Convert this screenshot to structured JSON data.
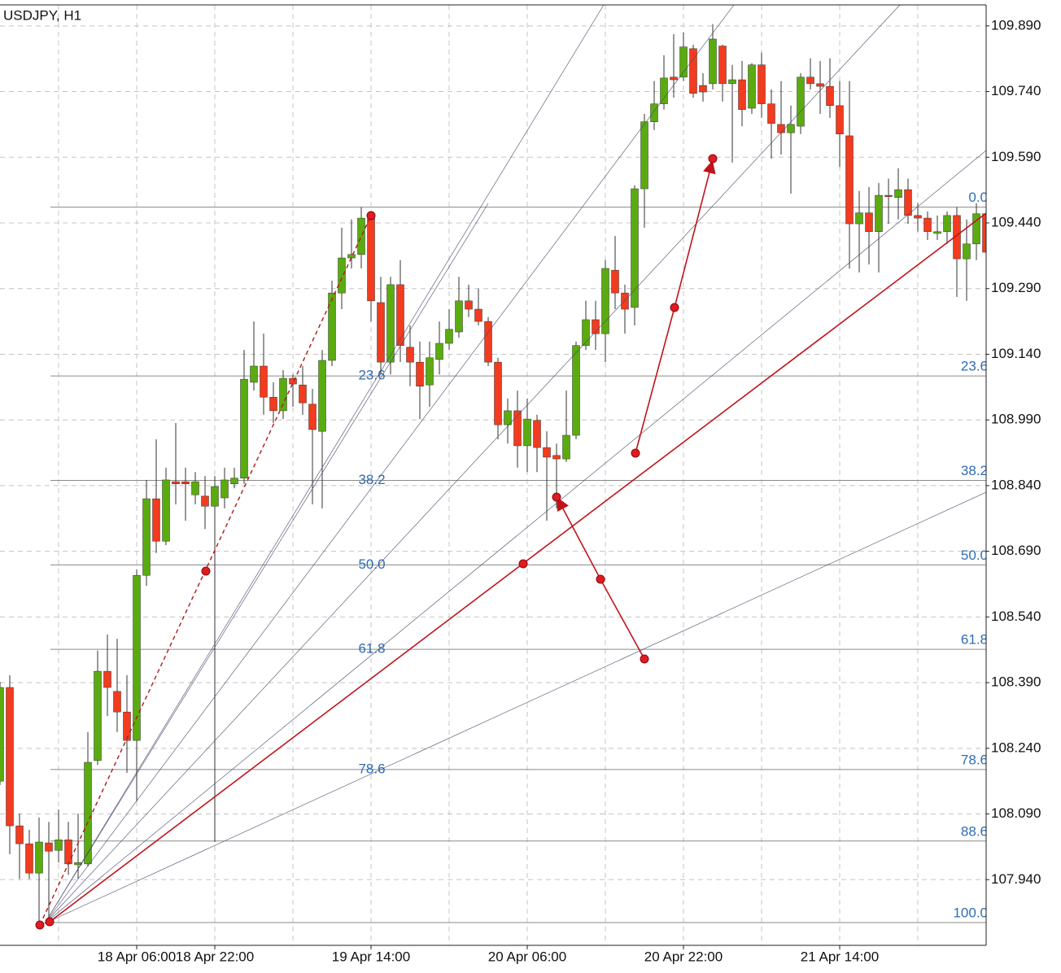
{
  "chart_data": {
    "type": "candlestick",
    "title": "USDJPY, H1",
    "categories": [
      null,
      null,
      null,
      null,
      null,
      null,
      null,
      null,
      null,
      null,
      null,
      null,
      null,
      null,
      "18 Apr 06:00",
      null,
      null,
      null,
      null,
      null,
      null,
      null,
      "18 Apr 22:00",
      null,
      null,
      null,
      null,
      null,
      null,
      null,
      null,
      null,
      null,
      null,
      null,
      null,
      null,
      null,
      "19 Apr 14:00",
      null,
      null,
      null,
      null,
      null,
      null,
      null,
      null,
      null,
      null,
      null,
      null,
      null,
      null,
      null,
      "20 Apr 06:00",
      null,
      null,
      null,
      null,
      null,
      null,
      null,
      null,
      null,
      null,
      null,
      null,
      null,
      null,
      null,
      "20 Apr 22:00",
      null,
      null,
      null,
      null,
      null,
      null,
      null,
      null,
      null,
      null,
      null,
      null,
      null,
      null,
      null,
      "21 Apr 14:00",
      null,
      null,
      null,
      null,
      null,
      null,
      null,
      null,
      null,
      null,
      null,
      null,
      null,
      null,
      null
    ],
    "open": [
      108.165,
      108.379,
      108.063,
      108.022,
      107.955,
      108.024,
      108.007,
      108.031,
      107.974,
      107.976,
      108.212,
      108.416,
      108.37,
      108.323,
      108.258,
      108.635,
      108.81,
      108.713,
      108.849,
      108.849,
      108.819,
      108.816,
      108.793,
      108.812,
      108.844,
      108.857,
      109.076,
      109.113,
      109.042,
      109.011,
      109.085,
      109.07,
      109.026,
      108.964,
      109.126,
      109.28,
      109.36,
      109.368,
      109.455,
      109.258,
      109.122,
      109.299,
      109.156,
      109.122,
      109.07,
      109.128,
      109.165,
      109.191,
      109.262,
      109.243,
      109.215,
      109.122,
      108.979,
      109.011,
      108.931,
      108.989,
      108.927,
      108.909,
      108.901,
      108.955,
      109.16,
      109.219,
      109.187,
      109.332,
      109.28,
      109.247,
      109.518,
      109.671,
      109.712,
      109.773,
      109.773,
      109.838,
      109.754,
      109.758,
      109.844,
      109.758,
      109.767,
      109.702,
      109.801,
      109.712,
      109.665,
      109.646,
      109.661,
      109.773,
      109.758,
      109.752,
      109.708,
      109.639,
      109.438,
      109.463,
      109.42,
      109.503,
      109.498,
      109.516,
      109.457,
      109.451,
      109.416,
      109.42,
      109.457,
      109.358,
      109.392,
      109.461
    ],
    "high": [
      108.392,
      108.407,
      108.091,
      108.054,
      108.082,
      108.072,
      108.1,
      108.072,
      108.091,
      108.277,
      108.463,
      108.5,
      108.49,
      108.407,
      108.648,
      108.853,
      108.946,
      108.881,
      108.983,
      108.881,
      108.871,
      108.862,
      108.862,
      108.881,
      108.881,
      109.15,
      109.215,
      109.187,
      109.076,
      109.104,
      109.094,
      109.113,
      109.061,
      109.15,
      109.308,
      109.429,
      109.448,
      109.476,
      109.466,
      109.317,
      109.317,
      109.355,
      109.206,
      109.169,
      109.169,
      109.215,
      109.243,
      109.317,
      109.299,
      109.29,
      109.225,
      109.132,
      109.039,
      109.057,
      109.039,
      109.002,
      108.964,
      108.936,
      109.057,
      109.169,
      109.262,
      109.262,
      109.355,
      109.41,
      109.299,
      109.526,
      109.689,
      109.764,
      109.823,
      109.871,
      109.875,
      109.847,
      109.782,
      109.894,
      109.847,
      109.801,
      109.81,
      109.805,
      109.829,
      109.745,
      109.764,
      109.708,
      109.782,
      109.816,
      109.81,
      109.816,
      109.764,
      109.764,
      109.513,
      109.522,
      109.531,
      109.541,
      109.565,
      109.541,
      109.485,
      109.466,
      109.457,
      109.466,
      109.476,
      109.448,
      109.485,
      109.476
    ],
    "low": [
      108.156,
      107.998,
      107.942,
      107.942,
      107.836,
      107.844,
      107.979,
      107.951,
      107.942,
      107.97,
      108.202,
      108.314,
      108.277,
      108.184,
      108.119,
      108.611,
      108.686,
      108.704,
      108.797,
      108.76,
      108.797,
      108.741,
      108.026,
      108.788,
      108.834,
      108.844,
      109.057,
      109.002,
      108.983,
      108.992,
      109.02,
      109.002,
      108.797,
      108.788,
      109.113,
      109.243,
      109.336,
      109.336,
      109.215,
      109.094,
      109.094,
      109.122,
      109.067,
      108.992,
      109.02,
      109.094,
      109.15,
      109.178,
      109.225,
      109.206,
      109.113,
      108.946,
      108.936,
      108.881,
      108.871,
      108.871,
      108.76,
      108.788,
      108.894,
      108.946,
      109.15,
      109.15,
      109.122,
      109.243,
      109.187,
      109.206,
      109.429,
      109.652,
      109.699,
      109.726,
      109.764,
      109.726,
      109.717,
      109.745,
      109.717,
      109.578,
      109.661,
      109.689,
      109.68,
      109.587,
      109.596,
      109.507,
      109.643,
      109.745,
      109.689,
      109.68,
      109.568,
      109.336,
      109.327,
      109.345,
      109.327,
      109.438,
      109.448,
      109.438,
      109.42,
      109.401,
      109.401,
      109.392,
      109.271,
      109.262,
      109.355,
      109.364
    ],
    "close": [
      108.379,
      108.063,
      108.022,
      107.955,
      108.026,
      108.005,
      108.031,
      107.976,
      107.979,
      108.208,
      108.416,
      108.379,
      108.323,
      108.258,
      108.635,
      108.81,
      108.713,
      108.853,
      108.844,
      108.844,
      108.849,
      108.793,
      108.838,
      108.853,
      108.857,
      109.083,
      109.113,
      109.042,
      109.011,
      109.085,
      109.072,
      109.029,
      108.968,
      109.126,
      109.28,
      109.36,
      109.368,
      109.451,
      109.262,
      109.122,
      109.299,
      109.16,
      109.122,
      109.067,
      109.132,
      109.165,
      109.197,
      109.262,
      109.243,
      109.215,
      109.122,
      108.979,
      109.011,
      108.931,
      108.992,
      108.927,
      108.905,
      108.901,
      108.955,
      109.16,
      109.219,
      109.187,
      109.336,
      109.28,
      109.243,
      109.518,
      109.671,
      109.712,
      109.771,
      109.767,
      109.842,
      109.736,
      109.739,
      109.86,
      109.758,
      109.767,
      109.699,
      109.801,
      109.712,
      109.667,
      109.646,
      109.665,
      109.773,
      109.758,
      109.752,
      109.708,
      109.643,
      109.438,
      109.463,
      109.42,
      109.503,
      109.5,
      109.516,
      109.457,
      109.451,
      109.42,
      109.42,
      109.457,
      109.358,
      109.392,
      109.461,
      109.373
    ],
    "up_color": "#5aab10",
    "down_color": "#f23b1f",
    "ylim": [
      107.79,
      109.938
    ],
    "yticks": [
      {
        "value": 109.89,
        "label": "109.890"
      },
      {
        "value": 109.74,
        "label": "109.740"
      },
      {
        "value": 109.59,
        "label": "109.590"
      },
      {
        "value": 109.44,
        "label": "109.440"
      },
      {
        "value": 109.29,
        "label": "109.290"
      },
      {
        "value": 109.14,
        "label": "109.140"
      },
      {
        "value": 108.99,
        "label": "108.990"
      },
      {
        "value": 108.84,
        "label": "108.840"
      },
      {
        "value": 108.69,
        "label": "108.690"
      },
      {
        "value": 108.54,
        "label": "108.540"
      },
      {
        "value": 108.39,
        "label": "108.390"
      },
      {
        "value": 108.24,
        "label": "108.240"
      },
      {
        "value": 108.09,
        "label": "108.090"
      },
      {
        "value": 107.94,
        "label": "107.940"
      }
    ],
    "grid": true,
    "fibonacci": {
      "high": 109.476,
      "low": 107.842,
      "color": "#2f6db5",
      "levels": [
        {
          "value": 0,
          "label": "0.0"
        },
        23.6,
        38.2,
        {
          "value": 50,
          "label": "50.0"
        },
        61.8,
        78.6,
        88.6,
        {
          "value": 100,
          "label": "100.0"
        }
      ]
    }
  }
}
